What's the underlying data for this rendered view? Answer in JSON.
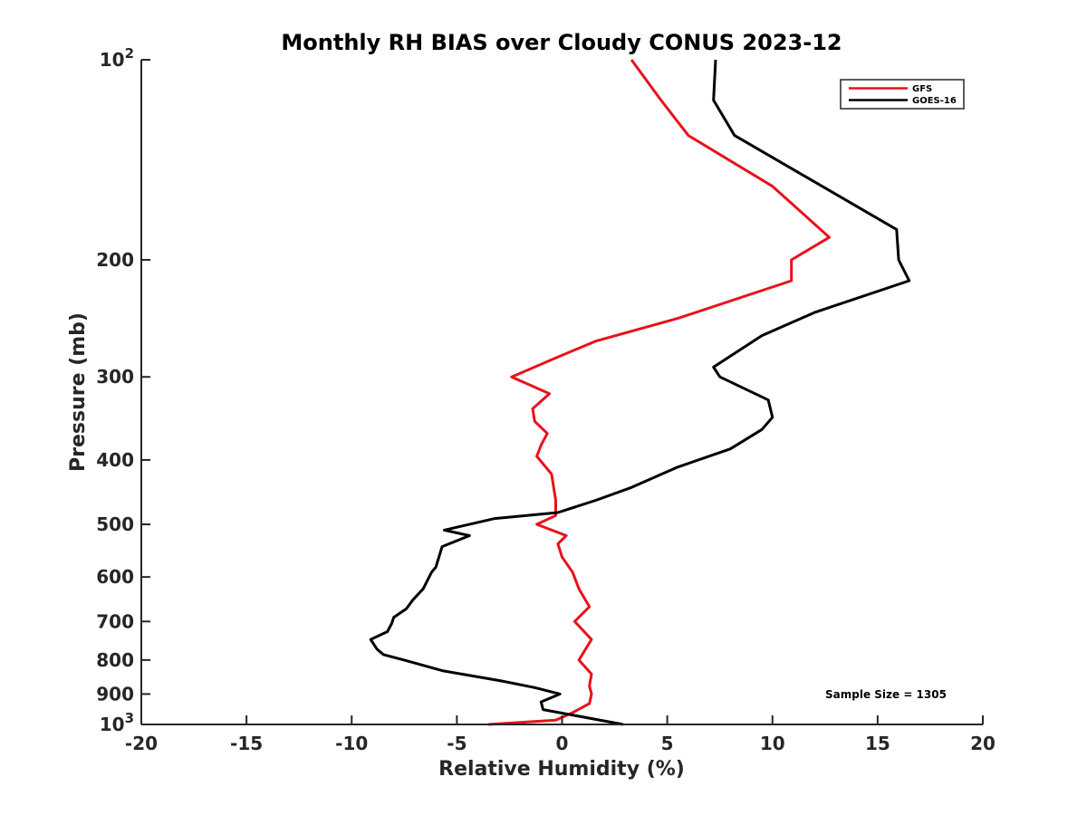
{
  "chart_data": {
    "type": "line",
    "title": "Monthly RH BIAS over Cloudy CONUS  2023-12",
    "xlabel": "Relative Humidity (%)",
    "ylabel": "Pressure (mb)",
    "xlim": [
      -20,
      20
    ],
    "ylim": [
      1000,
      100
    ],
    "yscale": "log",
    "y_reversed": true,
    "grid": false,
    "x_ticks": [
      -20,
      -15,
      -10,
      -5,
      0,
      5,
      10,
      15,
      20
    ],
    "x_tick_labels": [
      "-20",
      "-15",
      "-10",
      "-5",
      "0",
      "5",
      "10",
      "15",
      "20"
    ],
    "y_ticks": [
      100,
      200,
      300,
      400,
      500,
      600,
      700,
      800,
      900,
      1000
    ],
    "y_tick_labels": [
      {
        "base": "10",
        "exp": "2"
      },
      {
        "base": "200"
      },
      {
        "base": "300"
      },
      {
        "base": "400"
      },
      {
        "base": "500"
      },
      {
        "base": "600"
      },
      {
        "base": "700"
      },
      {
        "base": "800"
      },
      {
        "base": "900"
      },
      {
        "base": "10",
        "exp": "3"
      }
    ],
    "legend": {
      "position": "top-right"
    },
    "annotation": "Sample Size = 1305",
    "series": [
      {
        "name": "GFS",
        "color": "#e8121b",
        "points": [
          [
            3.3,
            100
          ],
          [
            4.7,
            115
          ],
          [
            6.0,
            130
          ],
          [
            10.0,
            155
          ],
          [
            12.7,
            185
          ],
          [
            10.9,
            200
          ],
          [
            10.9,
            215
          ],
          [
            5.5,
            245
          ],
          [
            1.6,
            265
          ],
          [
            -0.2,
            280
          ],
          [
            -2.4,
            300
          ],
          [
            -0.6,
            318
          ],
          [
            -1.4,
            335
          ],
          [
            -1.3,
            350
          ],
          [
            -0.7,
            365
          ],
          [
            -1.0,
            380
          ],
          [
            -1.2,
            395
          ],
          [
            -0.5,
            420
          ],
          [
            -0.3,
            460
          ],
          [
            -0.3,
            485
          ],
          [
            -1.2,
            500
          ],
          [
            0.2,
            520
          ],
          [
            -0.2,
            535
          ],
          [
            0.0,
            560
          ],
          [
            0.5,
            590
          ],
          [
            0.8,
            625
          ],
          [
            1.3,
            665
          ],
          [
            0.6,
            700
          ],
          [
            1.4,
            745
          ],
          [
            0.8,
            800
          ],
          [
            1.4,
            840
          ],
          [
            1.3,
            875
          ],
          [
            1.4,
            900
          ],
          [
            1.3,
            930
          ],
          [
            0.5,
            960
          ],
          [
            -0.3,
            985
          ],
          [
            -3.5,
            1000
          ]
        ]
      },
      {
        "name": "GOES-16",
        "color": "#000000",
        "points": [
          [
            7.3,
            100
          ],
          [
            7.2,
            115
          ],
          [
            8.2,
            130
          ],
          [
            15.9,
            180
          ],
          [
            16.0,
            200
          ],
          [
            16.5,
            215
          ],
          [
            12.0,
            240
          ],
          [
            9.5,
            260
          ],
          [
            7.2,
            290
          ],
          [
            7.5,
            300
          ],
          [
            9.8,
            325
          ],
          [
            10.0,
            345
          ],
          [
            9.5,
            360
          ],
          [
            8.0,
            385
          ],
          [
            5.5,
            410
          ],
          [
            3.3,
            440
          ],
          [
            1.6,
            460
          ],
          [
            -0.2,
            480
          ],
          [
            -3.2,
            490
          ],
          [
            -5.6,
            510
          ],
          [
            -4.4,
            520
          ],
          [
            -5.7,
            540
          ],
          [
            -6.0,
            580
          ],
          [
            -6.2,
            590
          ],
          [
            -6.6,
            625
          ],
          [
            -7.1,
            650
          ],
          [
            -7.4,
            670
          ],
          [
            -8.0,
            690
          ],
          [
            -8.1,
            705
          ],
          [
            -8.3,
            725
          ],
          [
            -9.1,
            745
          ],
          [
            -8.8,
            770
          ],
          [
            -8.5,
            785
          ],
          [
            -7.5,
            800
          ],
          [
            -5.7,
            830
          ],
          [
            -2.9,
            860
          ],
          [
            -1.3,
            880
          ],
          [
            -0.1,
            900
          ],
          [
            -1.0,
            925
          ],
          [
            -0.9,
            950
          ],
          [
            2.9,
            1000
          ]
        ]
      }
    ]
  }
}
